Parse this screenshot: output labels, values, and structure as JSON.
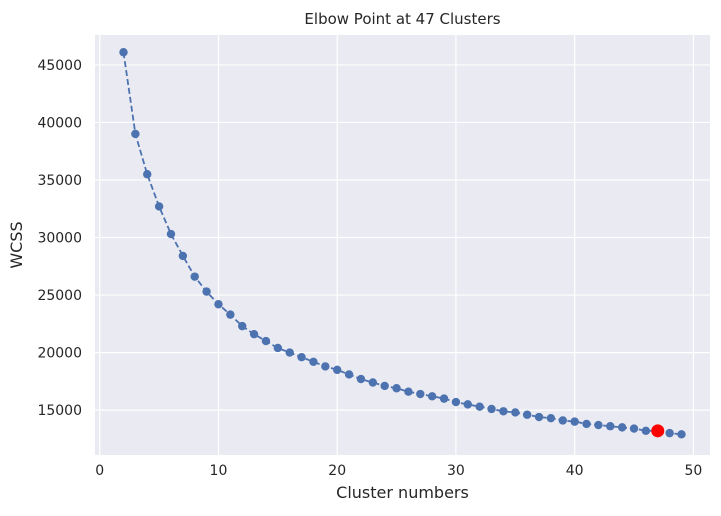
{
  "chart_data": {
    "type": "line",
    "title": "Elbow Point at 47 Clusters",
    "xlabel": "Cluster numbers",
    "ylabel": "WCSS",
    "xlim": [
      -0.4,
      51.4
    ],
    "ylim": [
      11100,
      47600
    ],
    "xticks": [
      0,
      10,
      20,
      30,
      40,
      50
    ],
    "yticks": [
      15000,
      20000,
      25000,
      30000,
      35000,
      40000,
      45000
    ],
    "grid": true,
    "background_color": "#eaeaf2",
    "series": [
      {
        "line_style": "dashed",
        "marker": "circle",
        "color": "#4c72b0",
        "x": [
          2,
          3,
          4,
          5,
          6,
          7,
          8,
          9,
          10,
          11,
          12,
          13,
          14,
          15,
          16,
          17,
          18,
          19,
          20,
          21,
          22,
          23,
          24,
          25,
          26,
          27,
          28,
          29,
          30,
          31,
          32,
          33,
          34,
          35,
          36,
          37,
          38,
          39,
          40,
          41,
          42,
          43,
          44,
          45,
          46,
          47,
          48,
          49
        ],
        "y": [
          46100,
          39000,
          35500,
          32700,
          30300,
          28400,
          26600,
          25300,
          24200,
          23300,
          22300,
          21600,
          21000,
          20400,
          20000,
          19600,
          19200,
          18800,
          18500,
          18100,
          17700,
          17400,
          17100,
          16900,
          16600,
          16400,
          16200,
          16000,
          15700,
          15500,
          15300,
          15100,
          14900,
          14800,
          14600,
          14400,
          14300,
          14100,
          14000,
          13800,
          13700,
          13600,
          13500,
          13400,
          13200,
          13200,
          13000,
          12900
        ]
      }
    ],
    "highlight": {
      "x": 47,
      "y": 13200,
      "color": "#ff0000"
    }
  }
}
